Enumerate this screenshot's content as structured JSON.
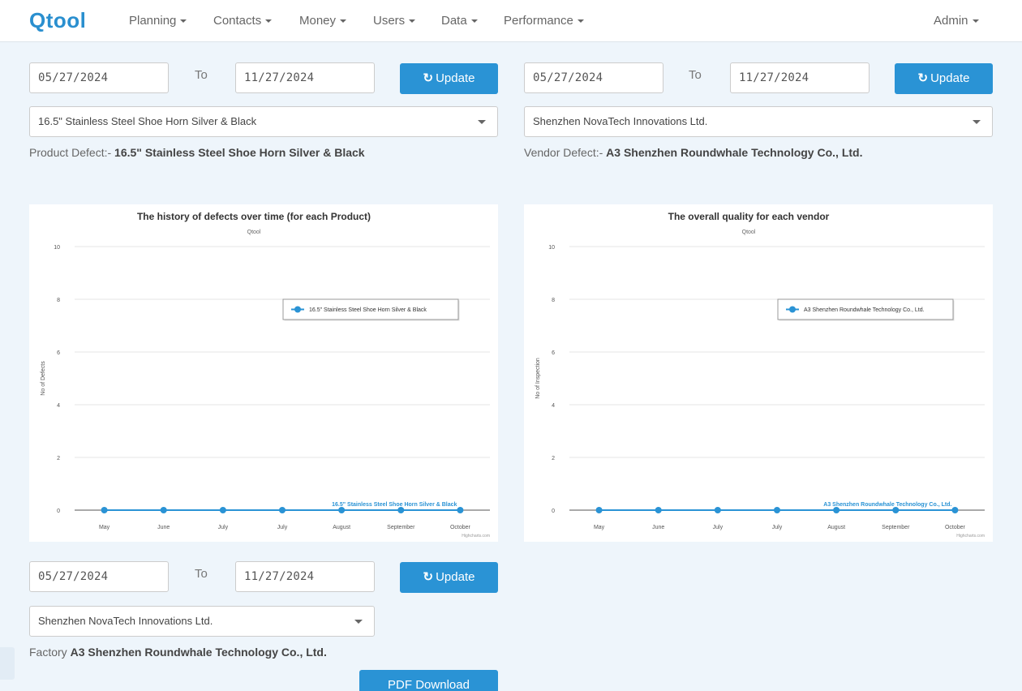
{
  "nav": {
    "brand": "Qtool",
    "items": [
      {
        "label": "Planning"
      },
      {
        "label": "Contacts"
      },
      {
        "label": "Money"
      },
      {
        "label": "Users"
      },
      {
        "label": "Data"
      },
      {
        "label": "Performance"
      }
    ],
    "user": "Admin"
  },
  "product_panel": {
    "from_date": "05/27/2024",
    "to_label": "To",
    "to_date": "11/27/2024",
    "update_label": "Update",
    "select_value": "16.5\" Stainless Steel Shoe Horn Silver & Black",
    "defect_prefix": "Product Defect:-",
    "defect_value": "16.5\" Stainless Steel Shoe Horn Silver & Black"
  },
  "vendor_panel": {
    "from_date": "05/27/2024",
    "to_label": "To",
    "to_date": "11/27/2024",
    "update_label": "Update",
    "select_value": "Shenzhen NovaTech Innovations Ltd.",
    "defect_prefix": "Vendor Defect:-",
    "defect_value": "A3 Shenzhen Roundwhale Technology Co., Ltd."
  },
  "factory_panel": {
    "from_date": "05/27/2024",
    "to_label": "To",
    "to_date": "11/27/2024",
    "update_label": "Update",
    "select_value": "Shenzhen NovaTech Innovations Ltd.",
    "factory_prefix": "Factory",
    "factory_value": "A3 Shenzhen Roundwhale Technology Co., Ltd.",
    "pdf_label": "PDF Download"
  },
  "chart_data": [
    {
      "type": "line",
      "title": "The history of defects over time (for each Product)",
      "subtitle": "Qtool",
      "ylabel": "No of Defects",
      "xlabel": "",
      "categories": [
        "May",
        "June",
        "July",
        "July",
        "August",
        "September",
        "October"
      ],
      "yticks": [
        "0",
        "2",
        "4",
        "6",
        "8",
        "10"
      ],
      "ylim": [
        0,
        10
      ],
      "grid": true,
      "legend_position": "top-right",
      "series": [
        {
          "name": "16.5\" Stainless Steel Shoe Horn Silver & Black",
          "values": [
            0,
            0,
            0,
            0,
            0,
            0,
            0
          ]
        }
      ],
      "credits": "Highcharts.com",
      "color": "#2a93d5"
    },
    {
      "type": "line",
      "title": "The overall quality for each vendor",
      "subtitle": "Qtool",
      "ylabel": "No of Inspection",
      "xlabel": "",
      "categories": [
        "May",
        "June",
        "July",
        "July",
        "August",
        "September",
        "October"
      ],
      "yticks": [
        "0",
        "2",
        "4",
        "6",
        "8",
        "10"
      ],
      "ylim": [
        0,
        10
      ],
      "grid": true,
      "legend_position": "top-right",
      "series": [
        {
          "name": "A3 Shenzhen Roundwhale Technology Co., Ltd.",
          "values": [
            0,
            0,
            0,
            0,
            0,
            0,
            0
          ]
        }
      ],
      "credits": "Highcharts.com",
      "color": "#2a93d5"
    }
  ]
}
